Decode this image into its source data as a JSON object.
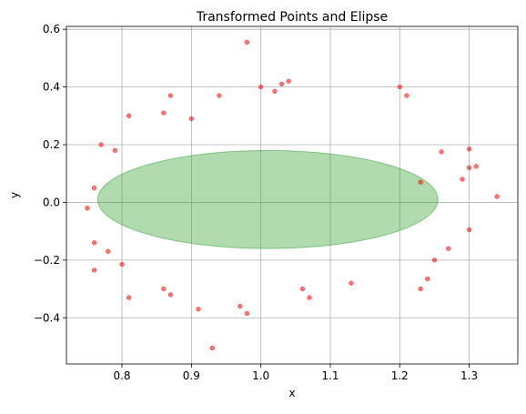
{
  "chart_data": {
    "type": "scatter",
    "title": "Transformed Points and Elipse",
    "xlabel": "x",
    "ylabel": "y",
    "xlim": [
      0.72,
      1.37
    ],
    "ylim": [
      -0.56,
      0.61
    ],
    "xticks": [
      0.8,
      0.9,
      1.0,
      1.1,
      1.2,
      1.3
    ],
    "xtick_labels": [
      "0.8",
      "0.9",
      "1.0",
      "1.1",
      "1.2",
      "1.3"
    ],
    "yticks": [
      -0.4,
      -0.2,
      0.0,
      0.2,
      0.4,
      0.6
    ],
    "ytick_labels": [
      "−0.4",
      "−0.2",
      "0.0",
      "0.2",
      "0.4",
      "0.6"
    ],
    "grid": true,
    "ellipse": {
      "center": [
        1.01,
        0.01
      ],
      "width": 0.49,
      "height": 0.34,
      "fill_color": "#2ca02c",
      "fill_opacity": 0.38
    },
    "point_color": "#ff0000",
    "point_opacity": 0.55,
    "series": [
      {
        "points": [
          [
            0.98,
            0.555
          ],
          [
            0.93,
            -0.505
          ],
          [
            1.04,
            0.42
          ],
          [
            1.03,
            0.41
          ],
          [
            1.0,
            0.4
          ],
          [
            1.2,
            0.4
          ],
          [
            1.21,
            0.37
          ],
          [
            0.98,
            -0.385
          ],
          [
            0.97,
            -0.36
          ],
          [
            1.02,
            0.385
          ],
          [
            0.87,
            0.37
          ],
          [
            1.34,
            0.02
          ],
          [
            0.91,
            -0.37
          ],
          [
            1.3,
            0.185
          ],
          [
            1.31,
            0.125
          ],
          [
            1.3,
            -0.095
          ],
          [
            1.27,
            -0.16
          ],
          [
            1.25,
            -0.2
          ],
          [
            1.24,
            -0.265
          ],
          [
            1.23,
            -0.3
          ],
          [
            0.76,
            -0.235
          ],
          [
            0.81,
            -0.33
          ],
          [
            0.86,
            -0.3
          ],
          [
            0.87,
            -0.32
          ],
          [
            0.75,
            -0.02
          ],
          [
            0.76,
            0.05
          ],
          [
            0.79,
            0.18
          ],
          [
            0.77,
            0.2
          ],
          [
            0.81,
            0.3
          ],
          [
            0.86,
            0.31
          ],
          [
            0.9,
            0.29
          ],
          [
            0.94,
            0.37
          ],
          [
            1.07,
            -0.33
          ],
          [
            1.06,
            -0.3
          ],
          [
            1.13,
            -0.28
          ],
          [
            1.26,
            0.175
          ],
          [
            1.3,
            0.12
          ],
          [
            1.29,
            0.08
          ],
          [
            1.23,
            0.07
          ],
          [
            0.8,
            -0.215
          ],
          [
            0.76,
            -0.14
          ],
          [
            0.78,
            -0.17
          ]
        ]
      }
    ]
  }
}
